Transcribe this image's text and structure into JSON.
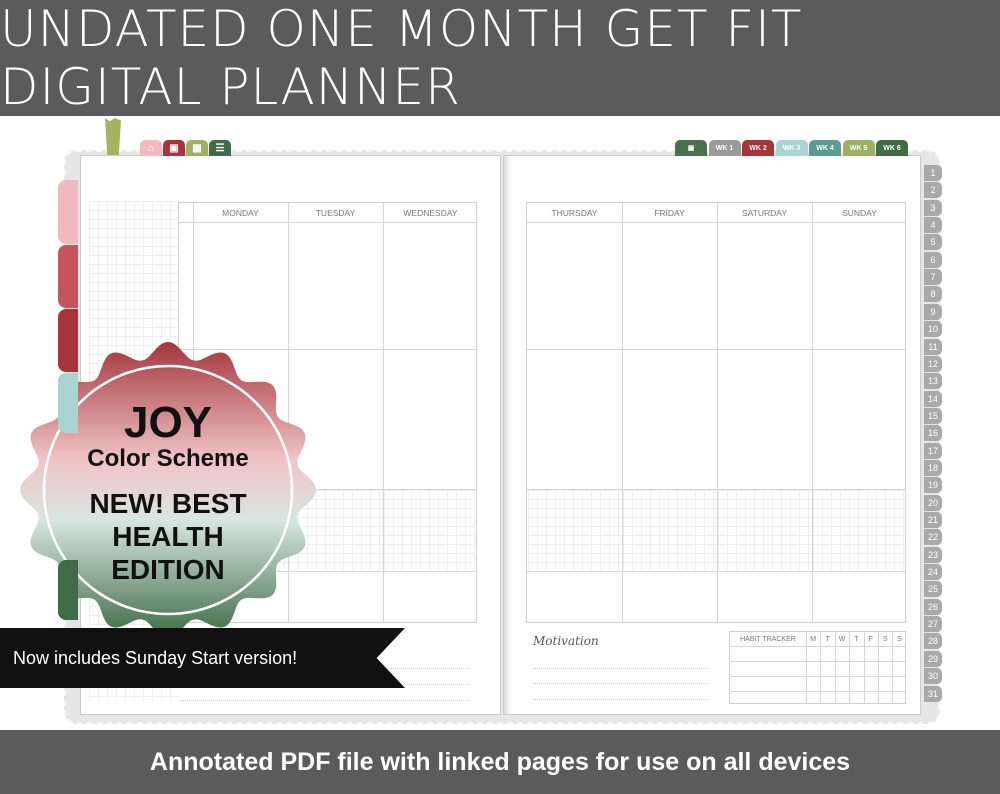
{
  "title": "UNDATED ONE MONTH GET FIT DIGITAL PLANNER",
  "footer": "Annotated PDF file with linked pages for use on all devices",
  "top_icon_tabs": [
    {
      "icon": "home-icon",
      "color": "#f0b9bd"
    },
    {
      "icon": "calendar-icon",
      "color": "#a8333a"
    },
    {
      "icon": "grid-icon",
      "color": "#9db162"
    },
    {
      "icon": "list-icon",
      "color": "#3f6b45"
    }
  ],
  "week_tabs": [
    {
      "label": "",
      "icon": "calendar-icon",
      "color": "#4a7050"
    },
    {
      "label": "WK 1",
      "color": "#9a9a9a"
    },
    {
      "label": "WK 2",
      "color": "#a8333a"
    },
    {
      "label": "WK 3",
      "color": "#a9d4d0"
    },
    {
      "label": "WK 4",
      "color": "#5d9c91"
    },
    {
      "label": "WK 5",
      "color": "#9db162"
    },
    {
      "label": "WK 6",
      "color": "#3f6b45"
    }
  ],
  "left_days": [
    "MONDAY",
    "TUESDAY",
    "WEDNESDAY"
  ],
  "right_days": [
    "THURSDAY",
    "FRIDAY",
    "SATURDAY",
    "SUNDAY"
  ],
  "motivation_label": "Motivation",
  "habit_tracker": {
    "title": "HABIT TRACKER",
    "days": [
      "M",
      "T",
      "W",
      "T",
      "F",
      "S",
      "S"
    ]
  },
  "day_numbers": [
    "1",
    "2",
    "3",
    "4",
    "5",
    "6",
    "7",
    "8",
    "9",
    "10",
    "11",
    "12",
    "13",
    "14",
    "15",
    "16",
    "17",
    "18",
    "19",
    "20",
    "21",
    "22",
    "23",
    "24",
    "25",
    "26",
    "27",
    "28",
    "29",
    "30",
    "31"
  ],
  "badge": {
    "line1": "JOY",
    "line2": "Color Scheme",
    "line3": "NEW! BEST",
    "line4": "HEALTH",
    "line5": "EDITION"
  },
  "ribbon": "Now includes Sunday Start version!",
  "colors": {
    "banner": "#5b5b5b",
    "red": "#a8333a",
    "pink": "#f0b9bd",
    "green": "#3f6b45",
    "teal": "#a9d4d0"
  }
}
